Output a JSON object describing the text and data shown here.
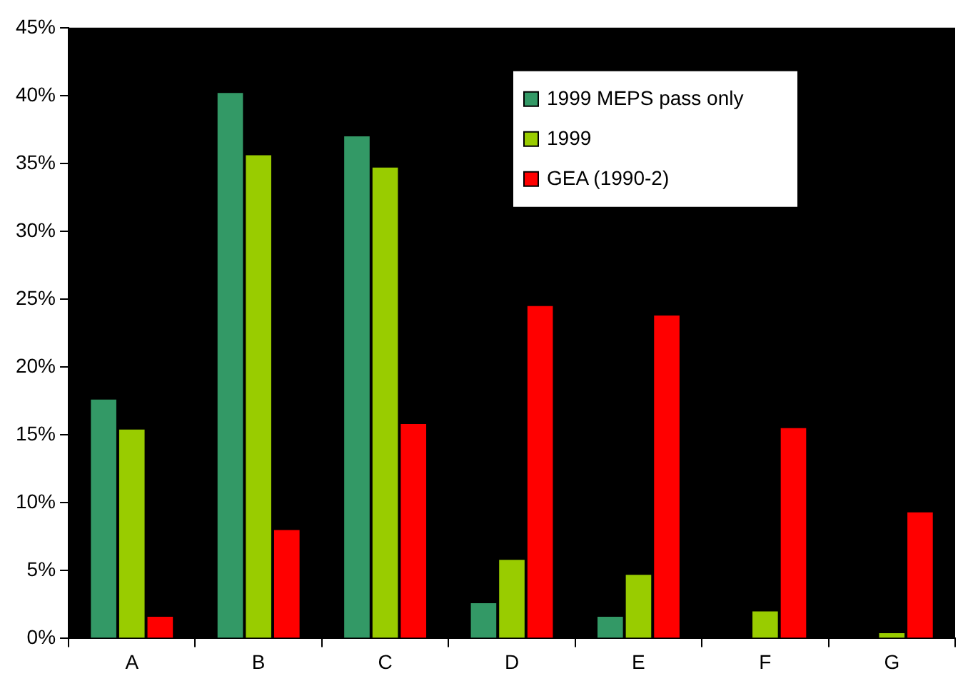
{
  "chart_data": {
    "type": "bar",
    "categories": [
      "A",
      "B",
      "C",
      "D",
      "E",
      "F",
      "G"
    ],
    "series": [
      {
        "name": "1999 MEPS pass only",
        "color": "#339966",
        "values": [
          17.7,
          40.3,
          37.1,
          2.7,
          1.7,
          0,
          0
        ]
      },
      {
        "name": "1999",
        "color": "#99cc00",
        "values": [
          15.5,
          35.7,
          34.8,
          5.9,
          4.8,
          2.1,
          0.5
        ]
      },
      {
        "name": "GEA (1990-2)",
        "color": "#ff0000",
        "values": [
          1.7,
          8.1,
          15.9,
          24.6,
          23.9,
          15.6,
          9.4
        ]
      }
    ],
    "ylim": [
      0,
      45
    ],
    "yticks": [
      {
        "value": 0,
        "label": "0%"
      },
      {
        "value": 5,
        "label": "5%"
      },
      {
        "value": 10,
        "label": "10%"
      },
      {
        "value": 15,
        "label": "15%"
      },
      {
        "value": 20,
        "label": "20%"
      },
      {
        "value": 25,
        "label": "25%"
      },
      {
        "value": 30,
        "label": "30%"
      },
      {
        "value": 35,
        "label": "35%"
      },
      {
        "value": 40,
        "label": "40%"
      },
      {
        "value": 45,
        "label": "45%"
      }
    ],
    "grid": false,
    "legend": "top right"
  }
}
